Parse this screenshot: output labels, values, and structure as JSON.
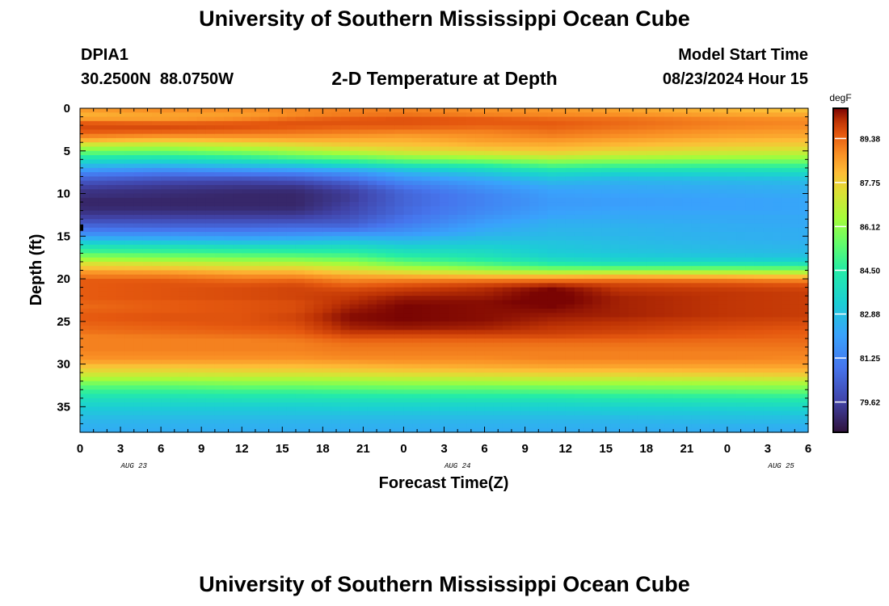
{
  "page": {
    "title": "University of Southern Mississippi Ocean Cube",
    "footer_title": "University of Southern Mississippi Ocean Cube",
    "station_id": "DPIA1",
    "station_coords": "30.2500N  88.0750W",
    "plot_subtitle": "2-D Temperature at Depth",
    "model_start_label": "Model Start Time",
    "model_start_value": "08/23/2024 Hour 15"
  },
  "chart_data": {
    "type": "heatmap",
    "title": "2-D Temperature at Depth",
    "xlabel": "Forecast Time(Z)",
    "ylabel": "Depth (ft)",
    "x_tick_labels": [
      "0",
      "3",
      "6",
      "9",
      "12",
      "15",
      "18",
      "21",
      "0",
      "3",
      "6",
      "9",
      "12",
      "15",
      "18",
      "21",
      "0",
      "3",
      "6"
    ],
    "x_hours_range": [
      0,
      54
    ],
    "date_labels": [
      {
        "label": "AUG 23",
        "hour": 4
      },
      {
        "label": "AUG 24",
        "hour": 28
      },
      {
        "label": "AUG 25",
        "hour": 52
      }
    ],
    "y_ticks": [
      0,
      5,
      10,
      15,
      20,
      25,
      30,
      35
    ],
    "y_tick_labels": [
      "0",
      "5",
      "10",
      "15",
      "20",
      "25",
      "30",
      "35"
    ],
    "ylim": [
      0,
      38
    ],
    "colorbar": {
      "unit": "degF",
      "min": 78.5,
      "max": 90.5,
      "tick_values": [
        89.38,
        87.75,
        86.12,
        84.5,
        82.88,
        81.25,
        79.62
      ],
      "tick_labels": [
        "89.38",
        "87.75",
        "86.12",
        "84.50",
        "82.88",
        "81.25",
        "79.62"
      ]
    },
    "depth_profile_keyframes": [
      {
        "hour": 0,
        "t": [
          88.6,
          88.3,
          88.6,
          89.5,
          89.7,
          89.5,
          89.0,
          88.3,
          87.2,
          86.2,
          85.3,
          84.4,
          83.5,
          82.7,
          81.9,
          81.1,
          80.5,
          80.0,
          79.6,
          79.3,
          79.2,
          79.0,
          79.0,
          79.1,
          79.3,
          79.6,
          80.0,
          80.5,
          81.0,
          81.6,
          82.4,
          83.3,
          84.1,
          84.8,
          85.7,
          86.5,
          87.4,
          88.0,
          88.7,
          89.1,
          89.5,
          89.5,
          89.5,
          89.5,
          89.5,
          89.4,
          89.3,
          89.4,
          89.5,
          89.5,
          89.4,
          89.3,
          89.2,
          89.0,
          89.0,
          89.0,
          89.0,
          88.9,
          88.8,
          88.5,
          88.0,
          87.6,
          87.1,
          86.5,
          85.8,
          85.2,
          84.7,
          84.2,
          83.8,
          83.5,
          83.2,
          83.0,
          82.8,
          82.6,
          82.5,
          82.4,
          82.3
        ]
      },
      {
        "hour": 6,
        "t": [
          88.8,
          88.5,
          88.6,
          89.4,
          89.7,
          89.4,
          88.8,
          88.0,
          87.0,
          86.1,
          85.2,
          84.3,
          83.4,
          82.5,
          81.6,
          80.8,
          80.2,
          79.7,
          79.4,
          79.2,
          79.1,
          79.0,
          79.0,
          79.1,
          79.3,
          79.6,
          80.0,
          80.4,
          80.9,
          81.6,
          82.3,
          83.2,
          84.0,
          84.7,
          85.5,
          86.3,
          87.2,
          87.9,
          88.6,
          89.1,
          89.5,
          89.6,
          89.6,
          89.6,
          89.6,
          89.5,
          89.5,
          89.5,
          89.6,
          89.6,
          89.5,
          89.4,
          89.3,
          89.1,
          89.0,
          89.0,
          89.0,
          88.9,
          88.8,
          88.5,
          88.0,
          87.6,
          87.1,
          86.5,
          85.8,
          85.2,
          84.7,
          84.2,
          83.8,
          83.5,
          83.2,
          83.0,
          82.8,
          82.6,
          82.5,
          82.4,
          82.3
        ]
      },
      {
        "hour": 12,
        "t": [
          88.8,
          88.6,
          88.9,
          89.5,
          89.6,
          89.3,
          88.8,
          88.2,
          87.3,
          86.5,
          85.6,
          84.7,
          83.7,
          82.8,
          81.8,
          80.9,
          80.1,
          79.6,
          79.3,
          79.1,
          79.0,
          79.0,
          79.0,
          79.1,
          79.3,
          79.6,
          80.0,
          80.4,
          80.9,
          81.5,
          82.2,
          83.0,
          83.8,
          84.6,
          85.3,
          86.1,
          86.9,
          87.6,
          88.3,
          88.9,
          89.3,
          89.6,
          89.7,
          89.7,
          89.7,
          89.6,
          89.6,
          89.6,
          89.6,
          89.6,
          89.6,
          89.5,
          89.4,
          89.2,
          89.0,
          89.0,
          89.0,
          88.9,
          88.8,
          88.5,
          88.1,
          87.7,
          87.2,
          86.6,
          86.0,
          85.4,
          84.8,
          84.3,
          83.9,
          83.5,
          83.2,
          83.0,
          82.8,
          82.6,
          82.5,
          82.4,
          82.3
        ]
      },
      {
        "hour": 16,
        "t": [
          88.9,
          88.9,
          89.3,
          89.6,
          89.5,
          89.2,
          88.8,
          88.3,
          87.6,
          86.9,
          86.1,
          85.2,
          84.1,
          83.0,
          82.0,
          81.0,
          80.3,
          79.7,
          79.3,
          79.1,
          79.0,
          79.0,
          79.0,
          79.1,
          79.3,
          79.6,
          80.0,
          80.5,
          81.0,
          81.6,
          82.3,
          83.0,
          83.8,
          84.5,
          85.2,
          86.0,
          86.8,
          87.6,
          88.3,
          88.9,
          89.4,
          89.7,
          89.8,
          89.8,
          89.8,
          89.7,
          89.7,
          89.7,
          89.8,
          89.8,
          89.7,
          89.6,
          89.5,
          89.3,
          89.1,
          89.0,
          89.0,
          88.9,
          88.8,
          88.5,
          88.1,
          87.7,
          87.2,
          86.6,
          86.0,
          85.4,
          84.8,
          84.3,
          83.9,
          83.5,
          83.2,
          83.0,
          82.8,
          82.6,
          82.5,
          82.4,
          82.3
        ]
      },
      {
        "hour": 20,
        "t": [
          89.0,
          89.1,
          89.5,
          89.6,
          89.4,
          89.1,
          88.7,
          88.3,
          87.9,
          87.3,
          86.5,
          85.6,
          84.6,
          83.5,
          82.3,
          81.5,
          80.9,
          80.3,
          79.9,
          79.6,
          79.5,
          79.5,
          79.6,
          79.7,
          79.8,
          80.0,
          80.2,
          80.5,
          81.0,
          81.8,
          82.5,
          83.2,
          83.8,
          84.4,
          85.0,
          85.7,
          86.4,
          87.1,
          87.8,
          88.5,
          89.0,
          89.4,
          89.7,
          89.9,
          90.0,
          90.1,
          90.2,
          90.3,
          90.4,
          90.4,
          90.3,
          90.2,
          90.0,
          89.7,
          89.4,
          89.2,
          89.1,
          89.0,
          88.9,
          88.6,
          88.2,
          87.8,
          87.3,
          86.7,
          86.1,
          85.5,
          84.9,
          84.4,
          83.9,
          83.6,
          83.3,
          83.0,
          82.8,
          82.6,
          82.5,
          82.4,
          82.3
        ]
      },
      {
        "hour": 24,
        "t": [
          89.0,
          89.2,
          89.6,
          89.6,
          89.4,
          89.0,
          88.6,
          88.3,
          88.0,
          87.6,
          87.0,
          86.1,
          85.1,
          84.0,
          83.0,
          82.3,
          81.8,
          81.3,
          80.9,
          80.6,
          80.5,
          80.5,
          80.5,
          80.6,
          80.6,
          80.8,
          80.9,
          81.2,
          81.5,
          81.9,
          82.4,
          82.9,
          83.4,
          83.9,
          84.4,
          85.0,
          85.7,
          86.6,
          87.5,
          88.4,
          89.1,
          89.6,
          89.9,
          90.1,
          90.3,
          90.4,
          90.5,
          90.5,
          90.5,
          90.5,
          90.4,
          90.3,
          90.0,
          89.7,
          89.4,
          89.2,
          89.1,
          89.0,
          88.9,
          88.7,
          88.3,
          87.9,
          87.4,
          86.8,
          86.2,
          85.6,
          85.0,
          84.4,
          84.0,
          83.6,
          83.3,
          83.0,
          82.8,
          82.6,
          82.5,
          82.4,
          82.3
        ]
      },
      {
        "hour": 30,
        "t": [
          88.8,
          89.0,
          89.5,
          89.5,
          89.3,
          89.0,
          88.8,
          88.6,
          88.3,
          87.9,
          87.3,
          86.5,
          85.5,
          84.5,
          83.6,
          82.9,
          82.4,
          82.0,
          81.7,
          81.5,
          81.3,
          81.3,
          81.3,
          81.4,
          81.5,
          81.7,
          81.9,
          82.1,
          82.3,
          82.5,
          82.8,
          83.1,
          83.4,
          83.7,
          84.0,
          84.5,
          85.1,
          86.0,
          87.1,
          88.2,
          89.2,
          89.8,
          90.1,
          90.2,
          90.3,
          90.4,
          90.4,
          90.4,
          90.4,
          90.4,
          90.3,
          90.2,
          90.0,
          89.7,
          89.4,
          89.2,
          89.1,
          89.0,
          88.9,
          88.7,
          88.4,
          88.0,
          87.5,
          86.9,
          86.3,
          85.6,
          85.0,
          84.5,
          84.0,
          83.6,
          83.3,
          83.0,
          82.8,
          82.6,
          82.5,
          82.4,
          82.3
        ]
      },
      {
        "hour": 35,
        "t": [
          88.7,
          88.9,
          89.3,
          89.5,
          89.4,
          89.2,
          89.0,
          88.7,
          88.4,
          88.1,
          87.6,
          86.9,
          86.0,
          85.1,
          84.2,
          83.5,
          83.0,
          82.6,
          82.3,
          82.1,
          82.0,
          81.9,
          81.9,
          82.0,
          82.1,
          82.2,
          82.4,
          82.5,
          82.6,
          82.7,
          82.8,
          83.0,
          83.1,
          83.2,
          83.4,
          83.8,
          84.5,
          85.5,
          86.8,
          88.2,
          89.3,
          90.1,
          90.5,
          90.6,
          90.6,
          90.6,
          90.5,
          90.4,
          90.3,
          90.2,
          90.1,
          90.0,
          89.9,
          89.7,
          89.4,
          89.2,
          89.1,
          89.0,
          89.0,
          88.8,
          88.5,
          88.1,
          87.6,
          87.0,
          86.4,
          85.7,
          85.1,
          84.5,
          84.0,
          83.6,
          83.3,
          83.0,
          82.8,
          82.6,
          82.5,
          82.4,
          82.3
        ]
      },
      {
        "hour": 40,
        "t": [
          88.5,
          88.8,
          89.2,
          89.3,
          89.2,
          89.0,
          88.8,
          88.5,
          88.2,
          87.8,
          87.3,
          86.6,
          85.8,
          84.9,
          84.0,
          83.3,
          82.8,
          82.5,
          82.3,
          82.2,
          82.1,
          82.0,
          82.0,
          82.1,
          82.2,
          82.3,
          82.4,
          82.5,
          82.6,
          82.6,
          82.7,
          82.8,
          82.9,
          83.0,
          83.2,
          83.5,
          84.2,
          85.4,
          86.9,
          88.3,
          89.3,
          89.8,
          90.0,
          90.1,
          90.2,
          90.2,
          90.2,
          90.2,
          90.2,
          90.1,
          90.0,
          89.9,
          89.8,
          89.6,
          89.4,
          89.2,
          89.1,
          89.0,
          89.0,
          88.8,
          88.5,
          88.1,
          87.6,
          87.0,
          86.4,
          85.8,
          85.2,
          84.6,
          84.1,
          83.7,
          83.3,
          83.1,
          82.8,
          82.6,
          82.5,
          82.4,
          82.3
        ]
      },
      {
        "hour": 48,
        "t": [
          88.2,
          88.5,
          88.9,
          89.0,
          88.9,
          88.7,
          88.5,
          88.2,
          87.9,
          87.5,
          87.0,
          86.4,
          85.6,
          84.8,
          84.0,
          83.4,
          82.9,
          82.6,
          82.4,
          82.3,
          82.2,
          82.1,
          82.1,
          82.1,
          82.2,
          82.3,
          82.3,
          82.4,
          82.4,
          82.5,
          82.5,
          82.6,
          82.7,
          82.8,
          83.0,
          83.4,
          84.2,
          85.4,
          86.8,
          88.2,
          89.2,
          89.7,
          89.9,
          90.0,
          90.0,
          90.0,
          90.0,
          90.0,
          90.0,
          89.9,
          89.8,
          89.7,
          89.6,
          89.5,
          89.3,
          89.2,
          89.1,
          89.0,
          89.0,
          88.8,
          88.5,
          88.2,
          87.7,
          87.1,
          86.5,
          85.9,
          85.3,
          84.7,
          84.2,
          83.8,
          83.4,
          83.1,
          82.9,
          82.7,
          82.5,
          82.4,
          82.3
        ]
      },
      {
        "hour": 54,
        "t": [
          88.0,
          88.4,
          88.8,
          88.9,
          88.8,
          88.6,
          88.4,
          88.1,
          87.8,
          87.4,
          86.9,
          86.3,
          85.6,
          84.8,
          84.1,
          83.5,
          83.0,
          82.7,
          82.5,
          82.4,
          82.3,
          82.2,
          82.2,
          82.2,
          82.2,
          82.3,
          82.3,
          82.3,
          82.4,
          82.4,
          82.4,
          82.5,
          82.6,
          82.7,
          82.9,
          83.3,
          84.1,
          85.3,
          86.7,
          88.0,
          89.0,
          89.6,
          89.8,
          89.9,
          89.9,
          89.9,
          89.9,
          89.9,
          89.9,
          89.8,
          89.7,
          89.6,
          89.5,
          89.4,
          89.3,
          89.2,
          89.1,
          89.0,
          88.9,
          88.8,
          88.5,
          88.2,
          87.8,
          87.2,
          86.6,
          86.0,
          85.4,
          84.8,
          84.3,
          83.9,
          83.5,
          83.2,
          82.9,
          82.7,
          82.5,
          82.4,
          82.3
        ]
      }
    ],
    "depth_step_ft": 0.5
  }
}
